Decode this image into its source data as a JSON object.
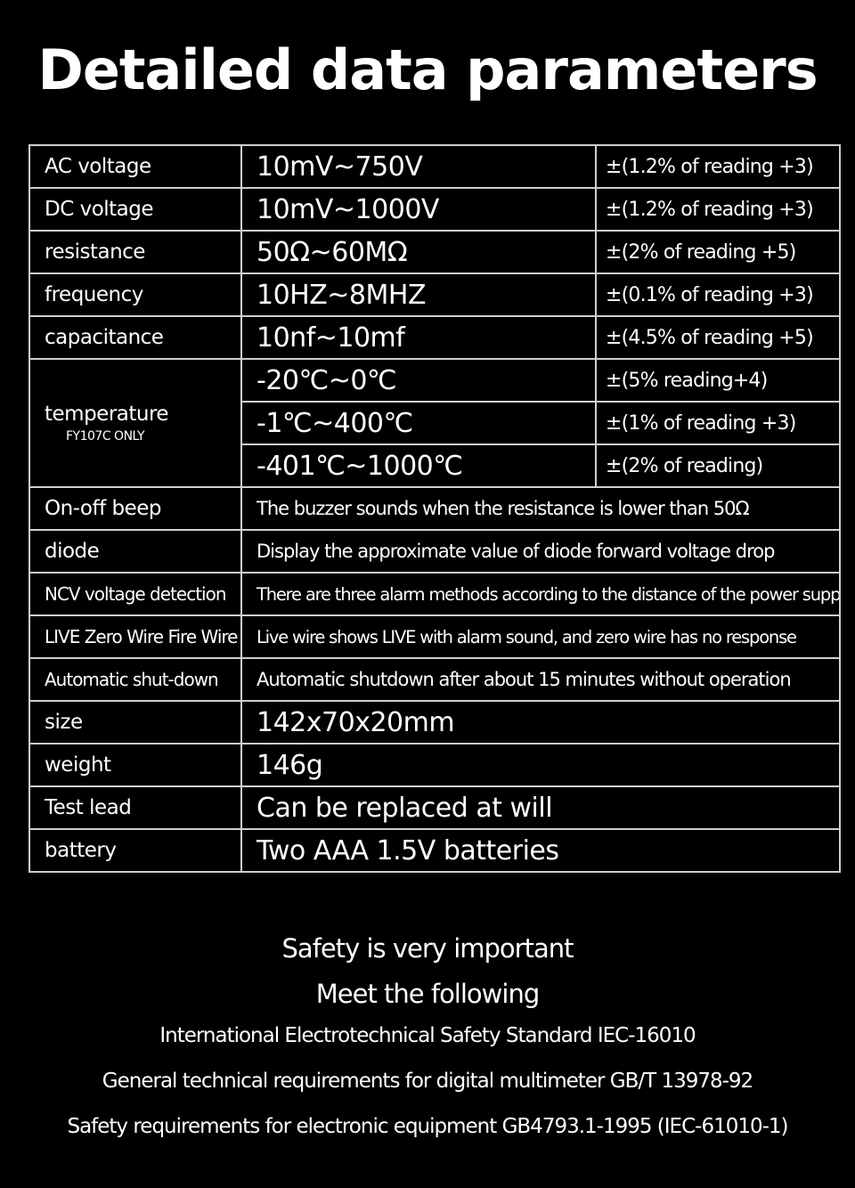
{
  "title": "Detailed data parameters",
  "rows": [
    {
      "label": "AC voltage",
      "range": "10mV~750V",
      "accuracy": "±(1.2% of reading +3)"
    },
    {
      "label": "DC voltage",
      "range": "10mV~1000V",
      "accuracy": "±(1.2% of reading +3)"
    },
    {
      "label": "resistance",
      "range": "50Ω~60MΩ",
      "accuracy": "±(2% of reading +5)"
    },
    {
      "label": "frequency",
      "range": "10HZ~8MHZ",
      "accuracy": "±(0.1% of reading +3)"
    },
    {
      "label": "capacitance",
      "range": "10nf~10mf",
      "accuracy": "±(4.5% of reading +5)"
    }
  ],
  "temperature": {
    "label": "temperature",
    "note": "FY107C ONLY",
    "ranges": [
      {
        "range": "-20℃~0℃",
        "accuracy": "±(5% reading+4)"
      },
      {
        "range": "-1℃~400℃",
        "accuracy": "±(1% of reading +3)"
      },
      {
        "range": "-401℃~1000℃",
        "accuracy": "±(2% of reading)"
      }
    ]
  },
  "features": [
    {
      "label": "On-off beep",
      "value": "The buzzer sounds when the resistance is lower than 50Ω"
    },
    {
      "label": "diode",
      "value": "Display the approximate value of diode forward voltage drop"
    },
    {
      "label": "NCV voltage detection",
      "value": "There are three alarm methods according to the distance of the power supply"
    },
    {
      "label": "LIVE Zero Wire Fire Wire",
      "value": "Live wire shows LIVE with alarm sound, and zero wire has no response"
    },
    {
      "label": "Automatic shut-down",
      "value": "Automatic shutdown after about 15 minutes without operation"
    }
  ],
  "specs": [
    {
      "label": "size",
      "value": "142x70x20mm"
    },
    {
      "label": "weight",
      "value": "146g"
    },
    {
      "label": "Test lead",
      "value": "Can be replaced at will"
    },
    {
      "label": "battery",
      "value": "Two AAA 1.5V batteries"
    }
  ],
  "footer": {
    "line1": "Safety is very important",
    "line2": "Meet the following",
    "line3": "International Electrotechnical Safety Standard IEC-16010",
    "line4": "General technical requirements for digital multimeter GB/T 13978-92",
    "line5": "Safety requirements for electronic equipment GB4793.1-1995 (IEC-61010-1)"
  }
}
